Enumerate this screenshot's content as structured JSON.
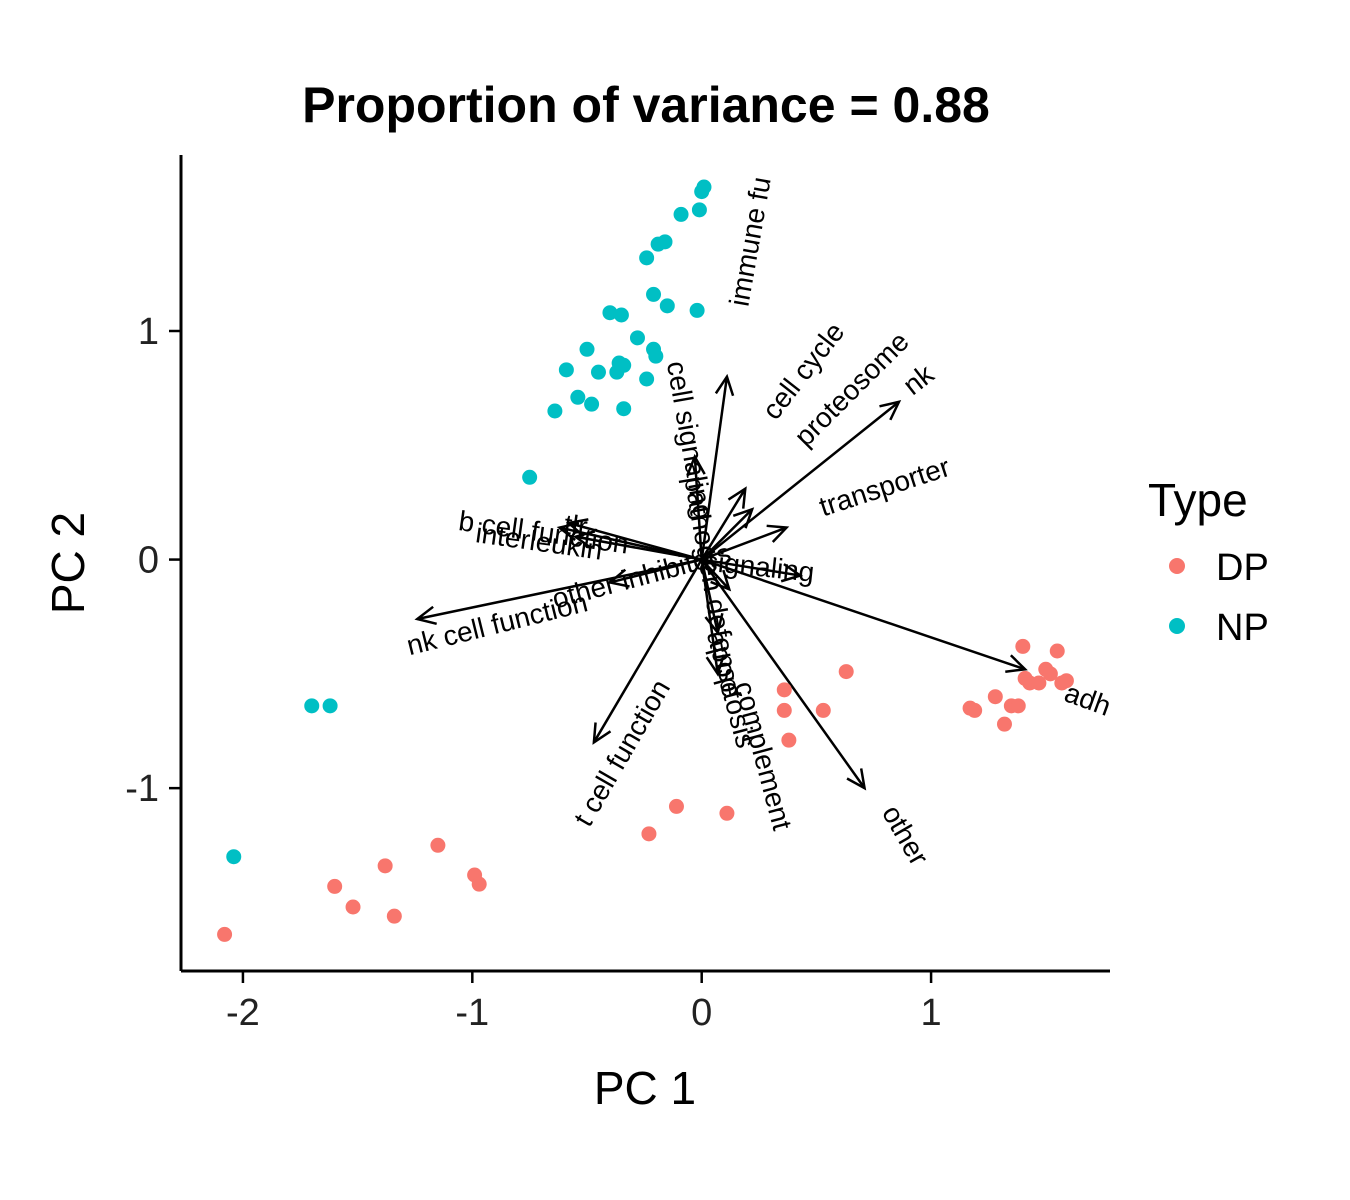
{
  "chart_data": {
    "type": "scatter",
    "title": "Proportion of variance = 0.88",
    "xlabel": "PC 1",
    "ylabel": "PC 2",
    "xlim": [
      -2.27,
      1.78
    ],
    "ylim": [
      -1.8,
      1.77
    ],
    "xticks": [
      -2,
      -1,
      0,
      1
    ],
    "xtick_labels": [
      "-2",
      "-1",
      "0",
      "1"
    ],
    "yticks": [
      -1,
      0,
      1
    ],
    "ytick_labels": [
      "-1",
      "0",
      "1"
    ],
    "grid": false,
    "legend": {
      "title": "Type",
      "position": "right"
    },
    "series": [
      {
        "name": "DP",
        "color": "#F8766D",
        "points": [
          [
            -2.08,
            -1.64
          ],
          [
            -1.6,
            -1.43
          ],
          [
            -1.52,
            -1.52
          ],
          [
            -1.38,
            -1.34
          ],
          [
            -1.34,
            -1.56
          ],
          [
            -1.15,
            -1.25
          ],
          [
            -0.99,
            -1.38
          ],
          [
            -0.97,
            -1.42
          ],
          [
            -0.23,
            -1.2
          ],
          [
            -0.11,
            -1.08
          ],
          [
            0.11,
            -1.11
          ],
          [
            0.36,
            -0.57
          ],
          [
            0.36,
            -0.66
          ],
          [
            0.38,
            -0.79
          ],
          [
            0.53,
            -0.66
          ],
          [
            0.63,
            -0.49
          ],
          [
            1.17,
            -0.65
          ],
          [
            1.19,
            -0.66
          ],
          [
            1.28,
            -0.6
          ],
          [
            1.32,
            -0.72
          ],
          [
            1.35,
            -0.64
          ],
          [
            1.38,
            -0.64
          ],
          [
            1.4,
            -0.38
          ],
          [
            1.41,
            -0.52
          ],
          [
            1.43,
            -0.54
          ],
          [
            1.47,
            -0.54
          ],
          [
            1.5,
            -0.48
          ],
          [
            1.52,
            -0.5
          ],
          [
            1.55,
            -0.4
          ],
          [
            1.57,
            -0.54
          ],
          [
            1.59,
            -0.53
          ]
        ]
      },
      {
        "name": "NP",
        "color": "#00BFC4",
        "points": [
          [
            -2.04,
            -1.3
          ],
          [
            -1.7,
            -0.64
          ],
          [
            -1.62,
            -0.64
          ],
          [
            -0.75,
            0.36
          ],
          [
            -0.64,
            0.65
          ],
          [
            -0.59,
            0.83
          ],
          [
            -0.54,
            0.71
          ],
          [
            -0.5,
            0.92
          ],
          [
            -0.48,
            0.68
          ],
          [
            -0.45,
            0.82
          ],
          [
            -0.4,
            1.08
          ],
          [
            -0.37,
            0.82
          ],
          [
            -0.36,
            0.86
          ],
          [
            -0.34,
            0.66
          ],
          [
            -0.34,
            0.85
          ],
          [
            -0.35,
            1.07
          ],
          [
            -0.28,
            0.97
          ],
          [
            -0.24,
            0.79
          ],
          [
            -0.24,
            1.32
          ],
          [
            -0.21,
            1.16
          ],
          [
            -0.21,
            0.92
          ],
          [
            -0.2,
            0.89
          ],
          [
            -0.19,
            1.38
          ],
          [
            -0.16,
            1.39
          ],
          [
            -0.15,
            1.11
          ],
          [
            -0.09,
            1.51
          ],
          [
            -0.02,
            1.09
          ],
          [
            -0.01,
            1.53
          ],
          [
            0.0,
            1.61
          ],
          [
            0.01,
            1.63
          ]
        ]
      }
    ],
    "loadings": [
      {
        "label": "immune fu",
        "end": [
          0.11,
          0.8
        ],
        "label_pos": [
          0.22,
          1.39
        ],
        "angle": -80
      },
      {
        "label": "cell cycle",
        "end": [
          0.19,
          0.31
        ],
        "label_pos": [
          0.45,
          0.82
        ],
        "angle": -52
      },
      {
        "label": "proteosome",
        "end": [
          0.22,
          0.22
        ],
        "label_pos": [
          0.66,
          0.74
        ],
        "angle": -45
      },
      {
        "label": "nk",
        "end": [
          0.86,
          0.69
        ],
        "label_pos": [
          0.95,
          0.78
        ],
        "angle": -38
      },
      {
        "label": "transporter",
        "end": [
          0.37,
          0.14
        ],
        "label_pos": [
          0.8,
          0.31
        ],
        "angle": -18
      },
      {
        "label": "cell signaling",
        "end": [
          -0.03,
          0.45
        ],
        "label_pos": [
          -0.06,
          0.52
        ],
        "angle": 80
      },
      {
        "label": "signaling",
        "end": [
          0.43,
          -0.07
        ],
        "label_pos": [
          0.25,
          -0.04
        ],
        "angle": 6
      },
      {
        "label": "adh",
        "end": [
          1.41,
          -0.48
        ],
        "label_pos": [
          1.68,
          -0.62
        ],
        "angle": 20
      },
      {
        "label": "other",
        "end": [
          0.71,
          -1.0
        ],
        "label_pos": [
          0.88,
          -1.21
        ],
        "angle": 60
      },
      {
        "label": "apoptosis",
        "end": [
          0.07,
          -0.32
        ],
        "label_pos": [
          0.12,
          -0.57
        ],
        "angle": 75
      },
      {
        "label": "complement",
        "end": [
          0.07,
          -0.5
        ],
        "label_pos": [
          0.26,
          -0.86
        ],
        "angle": 75
      },
      {
        "label": "t cell function",
        "end": [
          -0.47,
          -0.8
        ],
        "label_pos": [
          -0.34,
          -0.85
        ],
        "angle": -60
      },
      {
        "label": "nk cell function",
        "end": [
          -1.24,
          -0.26
        ],
        "label_pos": [
          -0.89,
          -0.29
        ],
        "angle": -14
      },
      {
        "label": "other inhibitors",
        "end": [
          -0.4,
          -0.1
        ],
        "label_pos": [
          -0.26,
          -0.08
        ],
        "angle": -15
      },
      {
        "label": "b cell function",
        "end": [
          -0.62,
          0.14
        ],
        "label_pos": [
          -0.69,
          0.11
        ],
        "angle": 8
      },
      {
        "label": "interleukin",
        "end": [
          -0.55,
          0.1
        ],
        "label_pos": [
          -0.71,
          0.07
        ],
        "angle": 8
      },
      {
        "label": "tlr",
        "end": [
          -0.58,
          0.16
        ],
        "label_pos": [
          -0.55,
          0.14
        ],
        "angle": 8
      },
      {
        "label": "pathogen defense",
        "end": [
          0.12,
          -0.13
        ],
        "label_pos": [
          0.04,
          -0.12
        ],
        "angle": 80
      }
    ]
  }
}
